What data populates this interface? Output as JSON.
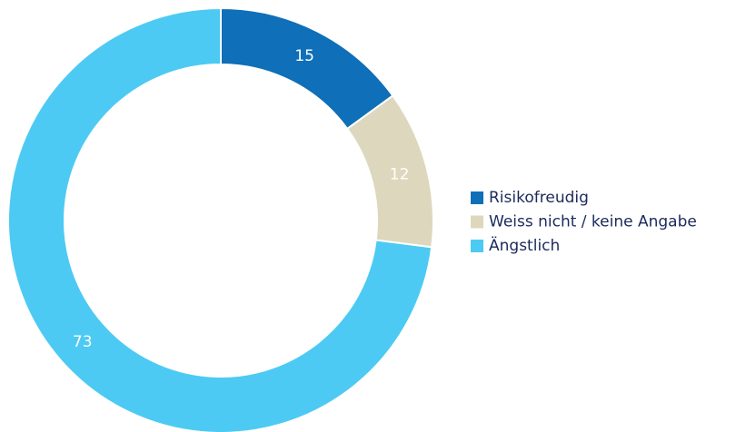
{
  "chart_data": {
    "type": "donut",
    "categories": [
      "Risikofreudig",
      "Weiss nicht / keine Angabe",
      "Ängstlich"
    ],
    "values": [
      15,
      12,
      73
    ],
    "colors": [
      "#0f6fb8",
      "#ddd8bd",
      "#4ccaf3"
    ]
  }
}
